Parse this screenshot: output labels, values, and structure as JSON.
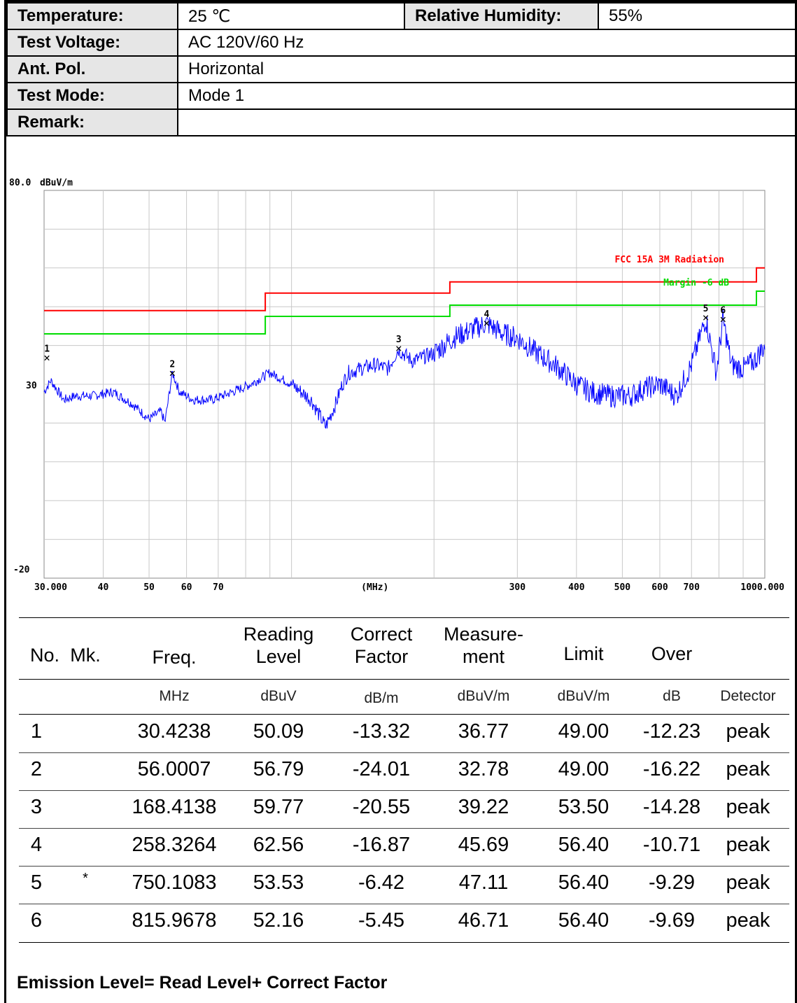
{
  "info": {
    "temperature_label": "Temperature:",
    "temperature_value": "25 ℃",
    "humidity_label": "Relative Humidity:",
    "humidity_value": "55%",
    "voltage_label": "Test Voltage:",
    "voltage_value": "AC 120V/60 Hz",
    "ant_pol_label": "Ant. Pol.",
    "ant_pol_value": "Horizontal",
    "mode_label": "Test Mode:",
    "mode_value": "Mode 1",
    "remark_label": "Remark:",
    "remark_value": ""
  },
  "chart_data": {
    "type": "line",
    "ylabel_unit": "dBuV/m",
    "xlabel": "(MHz)",
    "x_scale": "log",
    "xlim": [
      30,
      1000
    ],
    "ylim": [
      -20,
      80
    ],
    "y_ticks": [
      "80.0",
      "30",
      "-20"
    ],
    "x_ticks": [
      {
        "value": 30,
        "label": "30.000"
      },
      {
        "value": 40,
        "label": "40"
      },
      {
        "value": 50,
        "label": "50"
      },
      {
        "value": 60,
        "label": "60"
      },
      {
        "value": 70,
        "label": "70"
      },
      {
        "value": 300,
        "label": "300"
      },
      {
        "value": 400,
        "label": "400"
      },
      {
        "value": 500,
        "label": "500"
      },
      {
        "value": 600,
        "label": "600"
      },
      {
        "value": 700,
        "label": "700"
      },
      {
        "value": 1000,
        "label": "1000.000"
      }
    ],
    "grid": true,
    "series": [
      {
        "name": "FCC 15A 3M Radiation",
        "color": "#ff0000",
        "x": [
          30,
          88,
          88,
          216,
          216,
          960,
          960,
          1000
        ],
        "y": [
          49.0,
          49.0,
          53.5,
          53.5,
          56.4,
          56.4,
          60.0,
          60.0
        ]
      },
      {
        "name": "Margin -6 dB",
        "color": "#00dd00",
        "x": [
          30,
          88,
          88,
          216,
          216,
          960,
          960,
          1000
        ],
        "y": [
          43.0,
          43.0,
          47.5,
          47.5,
          50.4,
          50.4,
          54.0,
          54.0
        ]
      },
      {
        "name": "Measurement",
        "color": "#0000ff",
        "x": [
          30,
          31,
          33,
          35,
          38,
          42,
          46,
          50,
          53,
          54,
          56,
          58,
          62,
          68,
          75,
          82,
          90,
          100,
          110,
          118,
          124,
          128,
          132,
          140,
          150,
          160,
          168,
          180,
          200,
          220,
          240,
          258,
          280,
          300,
          330,
          360,
          400,
          430,
          470,
          520,
          560,
          600,
          650,
          700,
          750,
          790,
          816,
          850,
          900,
          950,
          1000
        ],
        "y": [
          28,
          31,
          26,
          27,
          27,
          28,
          25,
          21,
          23,
          20,
          33,
          28,
          26,
          26,
          28,
          30,
          33,
          30,
          26,
          19,
          25,
          30,
          33,
          34,
          35,
          34,
          39,
          36,
          38,
          42,
          44,
          45.7,
          43,
          42,
          38,
          35,
          30,
          28,
          27,
          27,
          29,
          30,
          27,
          35,
          47,
          33,
          46.7,
          35,
          34,
          36,
          40
        ]
      }
    ],
    "markers": [
      {
        "label": "1",
        "x": 30.4238,
        "y": 36.77
      },
      {
        "label": "2",
        "x": 56.0007,
        "y": 32.78
      },
      {
        "label": "3",
        "x": 168.4138,
        "y": 39.22
      },
      {
        "label": "4",
        "x": 258.3264,
        "y": 45.69
      },
      {
        "label": "5",
        "x": 750.1083,
        "y": 47.11
      },
      {
        "label": "6",
        "x": 815.9678,
        "y": 46.71
      }
    ]
  },
  "results": {
    "headers": {
      "no": "No.",
      "mk": "Mk.",
      "freq": "Freq.",
      "reading": "Reading\nLevel",
      "correct": "Correct\nFactor",
      "measurement": "Measure-\nment",
      "limit": "Limit",
      "over": "Over"
    },
    "units": {
      "freq": "MHz",
      "reading": "dBuV",
      "correct": "dB/m",
      "measurement": "dBuV/m",
      "limit": "dBuV/m",
      "over": "dB",
      "detector": "Detector"
    },
    "rows": [
      {
        "no": "1",
        "mk": "",
        "freq": "30.4238",
        "reading": "50.09",
        "correct": "-13.32",
        "measurement": "36.77",
        "limit": "49.00",
        "over": "-12.23",
        "detector": "peak"
      },
      {
        "no": "2",
        "mk": "",
        "freq": "56.0007",
        "reading": "56.79",
        "correct": "-24.01",
        "measurement": "32.78",
        "limit": "49.00",
        "over": "-16.22",
        "detector": "peak"
      },
      {
        "no": "3",
        "mk": "",
        "freq": "168.4138",
        "reading": "59.77",
        "correct": "-20.55",
        "measurement": "39.22",
        "limit": "53.50",
        "over": "-14.28",
        "detector": "peak"
      },
      {
        "no": "4",
        "mk": "",
        "freq": "258.3264",
        "reading": "62.56",
        "correct": "-16.87",
        "measurement": "45.69",
        "limit": "56.40",
        "over": "-10.71",
        "detector": "peak"
      },
      {
        "no": "5",
        "mk": "*",
        "freq": "750.1083",
        "reading": "53.53",
        "correct": "-6.42",
        "measurement": "47.11",
        "limit": "56.40",
        "over": "-9.29",
        "detector": "peak"
      },
      {
        "no": "6",
        "mk": "",
        "freq": "815.9678",
        "reading": "52.16",
        "correct": "-5.45",
        "measurement": "46.71",
        "limit": "56.40",
        "over": "-9.69",
        "detector": "peak"
      }
    ]
  },
  "formula": "Emission Level= Read Level+ Correct Factor"
}
